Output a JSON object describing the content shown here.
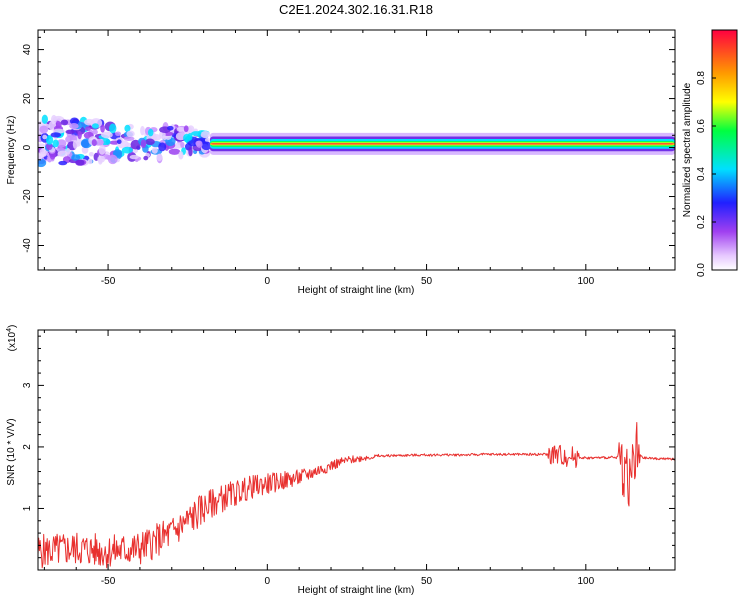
{
  "title": "C2E1.2024.302.16.31.R18",
  "colors": {
    "line": "#e8302e",
    "axis": "#000000",
    "background": "#ffffff"
  },
  "chart_data": [
    {
      "type": "heatmap",
      "panel": "spectrogram",
      "xlabel": "Height of straight line (km)",
      "ylabel": "Frequency (Hz)",
      "xlim": [
        -72,
        128
      ],
      "ylim": [
        -50,
        48
      ],
      "xticks": [
        -50,
        0,
        50,
        100
      ],
      "xtick_labels": [
        "-50",
        "0",
        "50",
        "100"
      ],
      "yticks": [
        -40,
        -20,
        0,
        20,
        40
      ],
      "ytick_labels": [
        "-40",
        "-20",
        "0",
        "20",
        "40"
      ],
      "colorbar": {
        "label": "Normalized spectral amplitude",
        "range": [
          0,
          1
        ],
        "ticks": [
          0.0,
          0.2,
          0.4,
          0.6,
          0.8
        ],
        "tick_labels": [
          "0.0",
          "0.2",
          "0.4",
          "0.6",
          "0.8"
        ]
      },
      "dominant_frequency_hz": 1.5,
      "noisy_region_km": [
        -72,
        -18
      ],
      "stable_band_km": [
        -18,
        128
      ]
    },
    {
      "type": "line",
      "panel": "snr",
      "xlabel": "Height of straight line (km)",
      "ylabel": "SNR (10 * V/V)",
      "y_multiplier_label": "(x10",
      "y_multiplier_exp": "4",
      "y_multiplier_close": ")",
      "xlim": [
        -72,
        128
      ],
      "ylim": [
        0,
        3.9
      ],
      "xticks": [
        -50,
        0,
        50,
        100
      ],
      "xtick_labels": [
        "-50",
        "0",
        "50",
        "100"
      ],
      "yticks": [
        1,
        2,
        3
      ],
      "ytick_labels": [
        "1",
        "2",
        "3"
      ],
      "series": [
        {
          "name": "SNR",
          "x": [
            -72,
            -60,
            -50,
            -40,
            -30,
            -25,
            -20,
            -15,
            -10,
            -5,
            0,
            5,
            10,
            15,
            20,
            25,
            30,
            35,
            40,
            50,
            60,
            70,
            80,
            90,
            95,
            100,
            110,
            114,
            116,
            118,
            128
          ],
          "y": [
            0.3,
            0.35,
            0.3,
            0.35,
            0.6,
            0.8,
            1.0,
            1.15,
            1.25,
            1.35,
            1.4,
            1.45,
            1.5,
            1.6,
            1.7,
            1.78,
            1.82,
            1.85,
            1.86,
            1.87,
            1.87,
            1.88,
            1.88,
            1.88,
            1.85,
            1.82,
            1.83,
            1.5,
            1.9,
            1.82,
            1.8
          ]
        }
      ]
    }
  ]
}
